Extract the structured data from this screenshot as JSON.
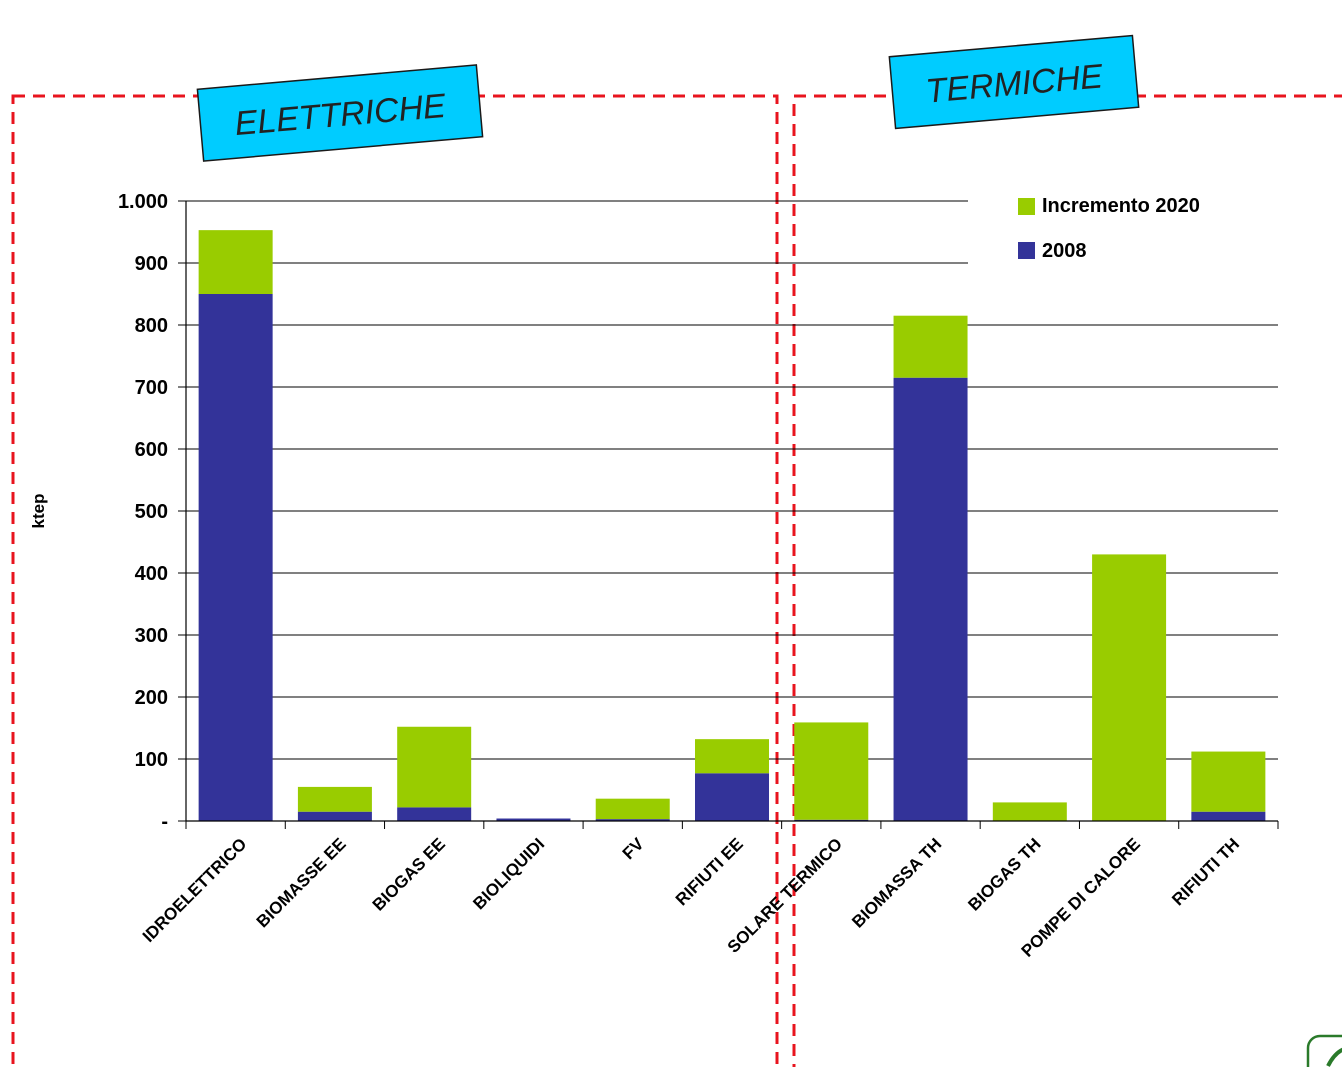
{
  "sections": {
    "electric_label": "ELETTRICHE",
    "thermal_label": "TERMICHE"
  },
  "colors": {
    "series_2008": "#333399",
    "series_increment": "#99CC00",
    "banner_fill": "#00CCFF",
    "dashed_border": "#E8141E"
  },
  "chart_data": {
    "type": "bar",
    "stacked": true,
    "ylabel": "ktep",
    "ylim": [
      0,
      1000
    ],
    "yticks": [
      0,
      100,
      200,
      300,
      400,
      500,
      600,
      700,
      800,
      900,
      1000
    ],
    "ytick_labels": [
      "-",
      "100",
      "200",
      "300",
      "400",
      "500",
      "600",
      "700",
      "800",
      "900",
      "1.000"
    ],
    "grid": true,
    "legend_position": "top-right",
    "categories": [
      "IDROELETTRICO",
      "BIOMASSE EE",
      "BIOGAS EE",
      "BIOLIQUIDI",
      "FV",
      "RIFIUTI EE",
      "SOLARE TERMICO",
      "BIOMASSA TH",
      "BIOGAS TH",
      "POMPE DI CALORE",
      "RIFIUTI TH"
    ],
    "series": [
      {
        "name": "2008",
        "values": [
          850,
          15,
          22,
          4,
          3,
          77,
          2,
          715,
          0,
          0,
          15
        ]
      },
      {
        "name": "Incremento 2020",
        "values": [
          103,
          40,
          130,
          0,
          33,
          55,
          157,
          100,
          30,
          430,
          97
        ]
      }
    ],
    "legend": [
      {
        "name": "Incremento 2020",
        "color": "#99CC00"
      },
      {
        "name": "2008",
        "color": "#333399"
      }
    ]
  }
}
